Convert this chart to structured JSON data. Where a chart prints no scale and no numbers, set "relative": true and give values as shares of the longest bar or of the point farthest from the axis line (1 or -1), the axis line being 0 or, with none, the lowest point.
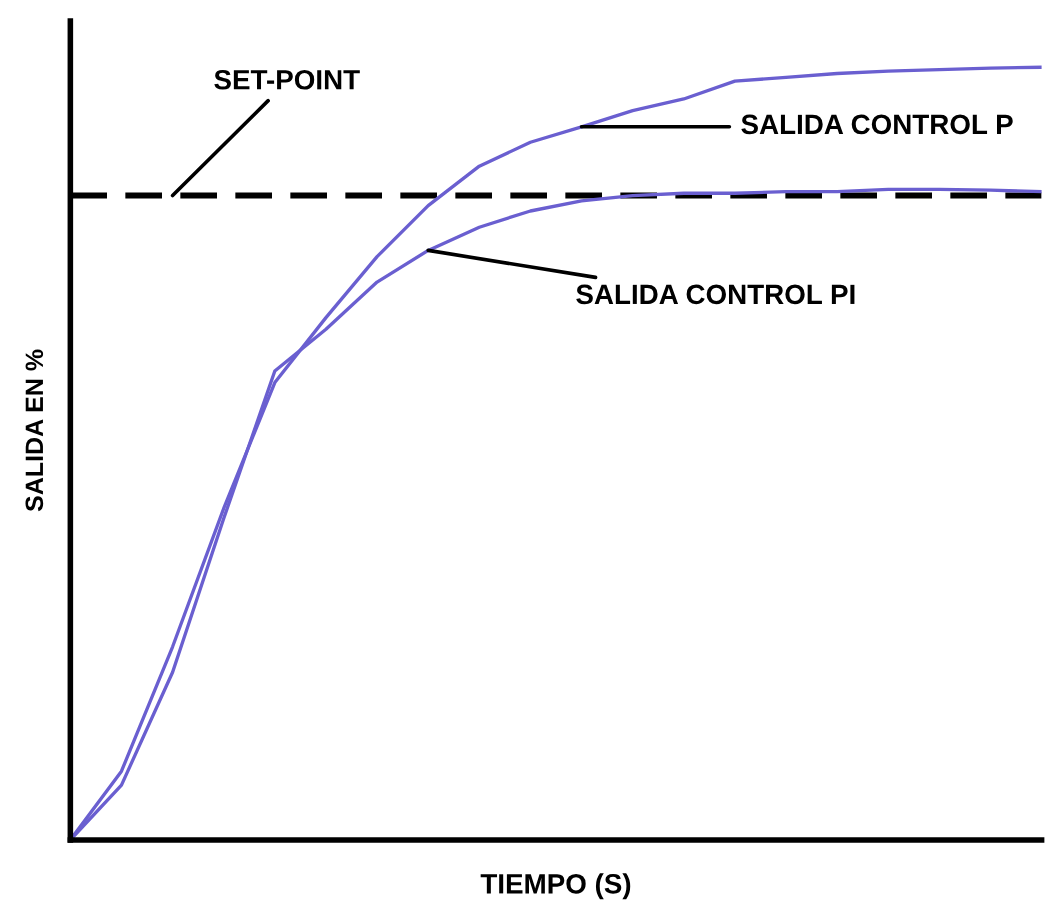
{
  "chart_data": {
    "type": "line",
    "relative": true,
    "xlabel": "TIEMPO (S)",
    "ylabel": "SALIDA EN %",
    "categories": [
      null,
      null,
      null,
      null,
      null,
      null,
      null,
      null,
      null,
      null,
      null,
      null,
      null,
      null,
      null,
      null,
      null,
      null,
      null,
      null
    ],
    "series": [
      {
        "name": "SALIDA CONTROL P",
        "color": "#6a5fd0",
        "values": [
          0,
          0.089,
          0.25,
          0.429,
          0.592,
          0.676,
          0.755,
          0.821,
          0.872,
          0.903,
          0.923,
          0.944,
          0.959,
          0.982,
          0.987,
          0.992,
          0.995,
          0.997,
          0.999,
          1
        ]
      },
      {
        "name": "SALIDA CONTROL PI",
        "color": "#6a5fd0",
        "values": [
          0,
          0.071,
          0.217,
          0.416,
          0.607,
          0.661,
          0.722,
          0.763,
          0.793,
          0.814,
          0.827,
          0.834,
          0.837,
          0.837,
          0.839,
          0.839,
          0.842,
          0.842,
          0.841,
          0.839
        ]
      }
    ],
    "ref_lines": [
      {
        "axis": "y",
        "value": 0.834,
        "label": "SET-POINT",
        "color": "#000000",
        "line_style": "dashdot"
      }
    ],
    "marker": "none",
    "line_style": "solid"
  }
}
